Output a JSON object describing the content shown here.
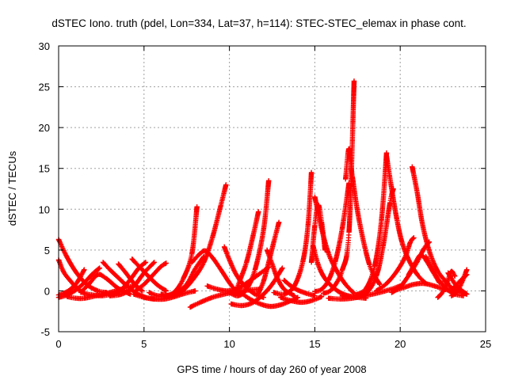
{
  "chart_data": {
    "type": "scatter",
    "title": "dSTEC Iono. truth (pdel, Lon=334, Lat=37, h=114): STEC-STEC_elemax in phase cont.",
    "xlabel": "GPS time / hours of day 260 of year 2008",
    "ylabel": "dSTEC  / TECUs",
    "xlim": [
      0,
      25
    ],
    "ylim": [
      -5,
      30
    ],
    "xticks": [
      0,
      5,
      10,
      15,
      20,
      25
    ],
    "yticks": [
      -5,
      0,
      5,
      10,
      15,
      20,
      25,
      30
    ],
    "grid": true,
    "marker": "+",
    "color": "#ff0000",
    "series": [
      {
        "x": [
          0.0,
          0.4,
          0.8,
          1.2,
          1.7,
          2.3,
          2.8
        ],
        "y": [
          6.3,
          4.5,
          3.0,
          1.8,
          0.7,
          0.0,
          -0.2
        ]
      },
      {
        "x": [
          0.0,
          0.3,
          0.7,
          1.1,
          1.5,
          2.0,
          2.5,
          3.2
        ],
        "y": [
          3.8,
          2.3,
          1.2,
          0.3,
          -0.3,
          -0.5,
          -0.6,
          -0.4
        ]
      },
      {
        "x": [
          0.0,
          0.3,
          0.7,
          1.1,
          1.5
        ],
        "y": [
          -0.5,
          -0.3,
          0.2,
          1.1,
          2.6
        ]
      },
      {
        "x": [
          0.0,
          0.5,
          1.0,
          1.5,
          2.0,
          2.4
        ],
        "y": [
          -0.8,
          -0.5,
          0.1,
          1.0,
          2.1,
          2.8
        ]
      },
      {
        "x": [
          0.5,
          1.0,
          1.5,
          2.2,
          3.0,
          3.8,
          4.5
        ],
        "y": [
          -0.7,
          -0.9,
          -0.9,
          -0.6,
          -0.2,
          0.3,
          0.7
        ]
      },
      {
        "x": [
          1.3,
          1.8,
          2.3,
          2.8,
          3.5,
          4.2
        ],
        "y": [
          -0.2,
          0.9,
          2.0,
          1.5,
          0.3,
          -0.4
        ]
      },
      {
        "x": [
          2.6,
          3.0,
          3.5,
          4.0,
          4.5,
          5.1,
          5.6
        ],
        "y": [
          3.5,
          2.6,
          1.6,
          0.6,
          -0.2,
          -0.8,
          -1.0
        ]
      },
      {
        "x": [
          3.5,
          3.9,
          4.3,
          4.6,
          4.9
        ],
        "y": [
          3.3,
          2.3,
          1.2,
          0.5,
          0.0
        ]
      },
      {
        "x": [
          3.0,
          3.5,
          4.0,
          4.5,
          5.0,
          5.6
        ],
        "y": [
          -0.6,
          -0.5,
          -0.1,
          0.8,
          2.2,
          3.5
        ]
      },
      {
        "x": [
          3.2,
          3.7,
          4.2,
          4.7,
          5.1
        ],
        "y": [
          -0.5,
          0.2,
          1.4,
          2.8,
          3.5
        ]
      },
      {
        "x": [
          4.3,
          4.8,
          5.3,
          5.8,
          6.3
        ],
        "y": [
          3.9,
          2.8,
          1.7,
          0.7,
          0.0
        ]
      },
      {
        "x": [
          4.5,
          5.0,
          5.5,
          6.0,
          6.3
        ],
        "y": [
          0.0,
          0.8,
          1.9,
          3.0,
          3.4
        ]
      },
      {
        "x": [
          4.4,
          5.0,
          5.6,
          6.2,
          6.8,
          7.4,
          8.0
        ],
        "y": [
          -0.4,
          -0.8,
          -1.0,
          -1.0,
          -0.7,
          -0.3,
          0.0
        ]
      },
      {
        "x": [
          5.3,
          5.8,
          6.3,
          6.8,
          7.3,
          7.8,
          8.1
        ],
        "y": [
          -0.2,
          -0.6,
          -0.6,
          -0.1,
          1.5,
          4.5,
          10.3
        ]
      },
      {
        "x": [
          6.0,
          6.7,
          7.3,
          7.9,
          8.5,
          9.0,
          9.5,
          9.8
        ],
        "y": [
          -0.4,
          -0.6,
          0.1,
          1.5,
          3.5,
          6.5,
          10.5,
          13.0
        ]
      },
      {
        "x": [
          6.3,
          6.9,
          7.5,
          8.0,
          8.5
        ],
        "y": [
          -0.6,
          -0.2,
          0.8,
          2.7,
          4.2
        ]
      },
      {
        "x": [
          7.7,
          8.3,
          9.0,
          9.7,
          10.4,
          11.1,
          11.8
        ],
        "y": [
          -2.0,
          -1.4,
          -0.8,
          -0.4,
          -0.1,
          0.1,
          0.2
        ]
      },
      {
        "x": [
          7.8,
          8.3,
          8.6,
          9.0,
          9.5,
          10.0,
          10.5
        ],
        "y": [
          3.5,
          4.6,
          4.9,
          4.1,
          2.6,
          1.0,
          -0.4
        ]
      },
      {
        "x": [
          8.7,
          9.3,
          9.9,
          10.5,
          11.1,
          11.7,
          12.3
        ],
        "y": [
          0.6,
          0.2,
          0.0,
          0.3,
          1.1,
          2.0,
          2.9
        ]
      },
      {
        "x": [
          9.7,
          10.0,
          10.4,
          10.9,
          11.5,
          12.0
        ],
        "y": [
          5.4,
          3.8,
          2.0,
          0.6,
          -0.4,
          -0.8
        ]
      },
      {
        "x": [
          10.0,
          10.5,
          11.0,
          11.5,
          12.0,
          12.3
        ],
        "y": [
          -0.2,
          -0.6,
          0.2,
          2.6,
          7.5,
          13.5
        ]
      },
      {
        "x": [
          10.3,
          10.6,
          11.0,
          11.4,
          11.7
        ],
        "y": [
          -0.5,
          1.2,
          3.5,
          6.9,
          9.7
        ]
      },
      {
        "x": [
          10.1,
          10.7,
          11.3,
          11.9,
          12.5,
          13.1
        ],
        "y": [
          -1.6,
          -1.8,
          -1.5,
          -0.6,
          0.8,
          2.8
        ]
      },
      {
        "x": [
          10.6,
          11.2,
          11.8,
          12.4,
          13.0,
          13.6,
          14.0
        ],
        "y": [
          -0.1,
          -1.0,
          -1.6,
          -1.9,
          -1.7,
          -1.2,
          -0.8
        ]
      },
      {
        "x": [
          11.7,
          12.0,
          12.3,
          12.6,
          12.9
        ],
        "y": [
          -0.3,
          1.2,
          3.5,
          6.0,
          8.4
        ]
      },
      {
        "x": [
          12.2,
          12.5,
          12.8,
          13.2,
          13.8
        ],
        "y": [
          5.0,
          3.3,
          1.6,
          0.2,
          -0.6
        ]
      },
      {
        "x": [
          12.6,
          13.2,
          13.8,
          14.3,
          14.6,
          14.8
        ],
        "y": [
          -0.2,
          -0.4,
          0.6,
          3.6,
          8.0,
          14.5
        ]
      },
      {
        "x": [
          13.2,
          13.6,
          14.0,
          14.5,
          15.0
        ],
        "y": [
          1.3,
          0.6,
          0.1,
          -0.3,
          -0.6
        ]
      },
      {
        "x": [
          13.0,
          13.6,
          14.2,
          14.8,
          15.4
        ],
        "y": [
          -0.8,
          -1.2,
          -1.4,
          -1.2,
          -0.7
        ]
      },
      {
        "x": [
          14.9,
          15.2,
          15.6,
          16.2,
          16.8,
          17.5,
          18.0
        ],
        "y": [
          5.5,
          3.2,
          1.5,
          0.2,
          -0.5,
          -0.8,
          -0.9
        ]
      },
      {
        "x": [
          15.0,
          15.4,
          15.8,
          16.3,
          16.8,
          17.3
        ],
        "y": [
          11.5,
          7.6,
          4.6,
          2.4,
          0.8,
          -0.3
        ]
      },
      {
        "x": [
          14.8,
          15.0,
          15.2,
          15.4,
          15.6
        ],
        "y": [
          3.5,
          8.0,
          10.5,
          8.4,
          5.0
        ]
      },
      {
        "x": [
          15.0,
          15.4,
          15.8,
          16.2,
          16.6,
          17.0
        ],
        "y": [
          -0.1,
          0.2,
          1.3,
          3.6,
          7.6,
          13.2
        ]
      },
      {
        "x": [
          15.5,
          16.0,
          16.6,
          17.0,
          17.3
        ],
        "y": [
          -0.3,
          0.2,
          2.5,
          7.2,
          25.7
        ]
      },
      {
        "x": [
          16.8,
          17.0,
          17.2,
          17.6,
          18.2,
          18.8
        ],
        "y": [
          13.7,
          17.4,
          14.0,
          8.6,
          3.2,
          0.8
        ]
      },
      {
        "x": [
          15.8,
          16.5,
          17.2,
          17.9,
          18.6,
          19.3,
          20.0
        ],
        "y": [
          -0.9,
          -1.0,
          -0.9,
          -0.6,
          -0.3,
          0.1,
          0.6
        ]
      },
      {
        "x": [
          16.6,
          17.3,
          18.0,
          18.6,
          19.0,
          19.4,
          19.6
        ],
        "y": [
          -0.6,
          -0.7,
          -0.3,
          1.8,
          5.5,
          10.8,
          12.5
        ]
      },
      {
        "x": [
          17.4,
          18.0,
          18.5,
          18.9,
          19.2
        ],
        "y": [
          -0.5,
          0.3,
          3.0,
          8.6,
          16.9
        ]
      },
      {
        "x": [
          19.2,
          19.5,
          19.8,
          20.1,
          20.5,
          21.0,
          21.5
        ],
        "y": [
          16.5,
          12.5,
          8.8,
          6.0,
          3.8,
          2.0,
          0.9
        ]
      },
      {
        "x": [
          18.6,
          19.2,
          19.8,
          20.3,
          20.6,
          20.8
        ],
        "y": [
          0.0,
          0.9,
          2.4,
          4.2,
          6.0,
          6.5
        ]
      },
      {
        "x": [
          20.7,
          21.0,
          21.3,
          21.7,
          22.2,
          22.8
        ],
        "y": [
          15.2,
          12.0,
          8.2,
          4.9,
          2.4,
          0.9
        ]
      },
      {
        "x": [
          19.5,
          20.0,
          20.5,
          21.0,
          21.4,
          21.7
        ],
        "y": [
          -0.2,
          0.5,
          1.9,
          3.6,
          5.2,
          6.0
        ]
      },
      {
        "x": [
          20.5,
          20.9,
          21.2,
          21.5,
          21.9,
          22.3
        ],
        "y": [
          2.0,
          3.5,
          4.4,
          3.8,
          2.4,
          1.0
        ]
      },
      {
        "x": [
          19.6,
          20.2,
          20.8,
          21.4,
          22.0,
          22.6,
          23.2
        ],
        "y": [
          0.0,
          0.4,
          0.8,
          0.9,
          0.6,
          0.2,
          -0.1
        ]
      },
      {
        "x": [
          21.5,
          21.9,
          22.3,
          22.8,
          23.2,
          23.7
        ],
        "y": [
          4.2,
          2.6,
          1.2,
          0.1,
          -0.4,
          -0.6
        ]
      },
      {
        "x": [
          22.2,
          22.5,
          22.8,
          23.0,
          23.2
        ],
        "y": [
          -0.8,
          -0.1,
          1.4,
          2.4,
          1.8
        ]
      },
      {
        "x": [
          22.6,
          23.0,
          23.4,
          23.9
        ],
        "y": [
          1.2,
          0.4,
          0.0,
          -0.4
        ]
      },
      {
        "x": [
          23.0,
          23.3,
          23.6,
          23.9
        ],
        "y": [
          -0.6,
          -0.2,
          1.0,
          2.6
        ]
      },
      {
        "x": [
          23.1,
          23.5,
          23.9
        ],
        "y": [
          0.3,
          1.2,
          2.0
        ]
      },
      {
        "x": [
          22.8,
          23.3,
          23.9
        ],
        "y": [
          2.2,
          0.6,
          -0.4
        ]
      }
    ]
  }
}
